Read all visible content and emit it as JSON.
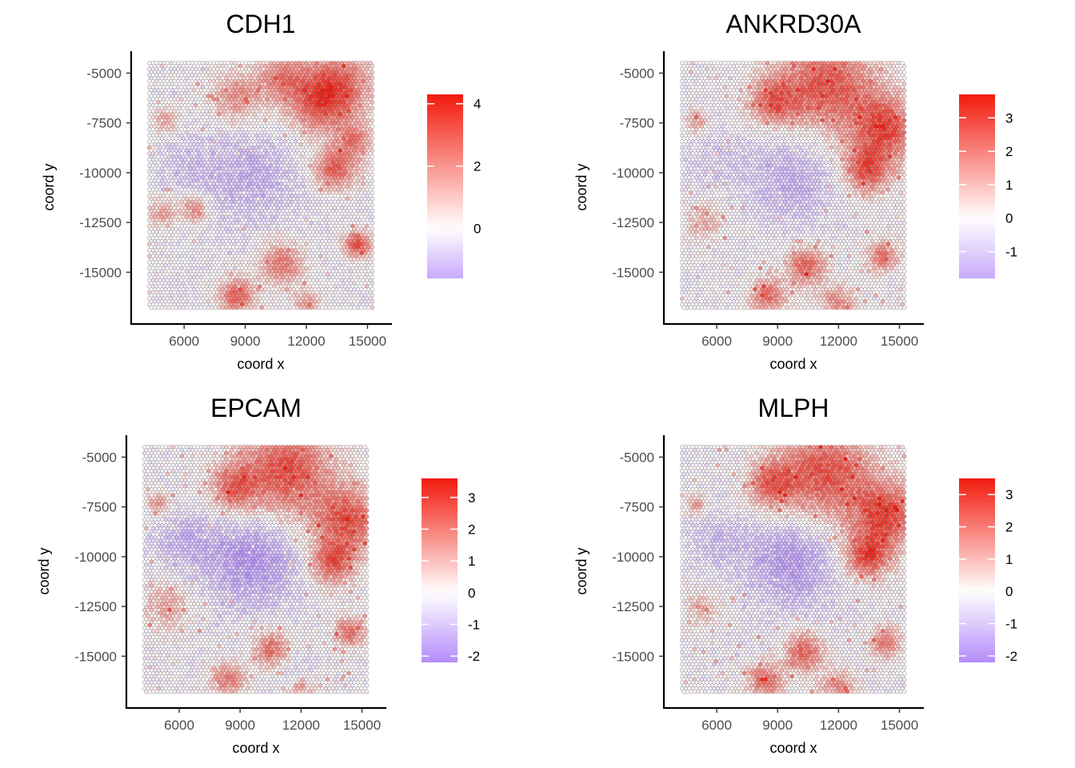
{
  "chart_data": [
    {
      "type": "scatter",
      "title": "CDH1",
      "xlabel": "coord x",
      "ylabel": "coord y",
      "x_ticks": [
        6000,
        9000,
        12000,
        15000
      ],
      "x_tick_labels": [
        "6000",
        "9000",
        "12000",
        "15000"
      ],
      "y_ticks": [
        -5000,
        -7500,
        -10000,
        -12500,
        -15000
      ],
      "y_tick_labels": [
        "-5000",
        "-7500",
        "-10000",
        "-12500",
        "-15000"
      ],
      "xlim": [
        3400,
        16200
      ],
      "ylim": [
        -17600,
        -3900
      ],
      "grid": false,
      "legend_position": "right",
      "color_scale": {
        "low": "#c8aafa",
        "mid": "#ffffff",
        "high": "#f21a0d",
        "min": -1.6,
        "max": 4.3
      },
      "color_scale_ticks": [
        0,
        2,
        4
      ],
      "color_scale_tick_labels": [
        "0",
        "2",
        "4"
      ],
      "hotspots": [
        {
          "x": 13500,
          "y": -5600,
          "r": 1800,
          "v": 3.0
        },
        {
          "x": 10800,
          "y": -5200,
          "r": 1200,
          "v": 2.3
        },
        {
          "x": 8600,
          "y": -6200,
          "r": 1300,
          "v": 2.0
        },
        {
          "x": 12500,
          "y": -6700,
          "r": 1500,
          "v": 2.2
        },
        {
          "x": 13400,
          "y": -9800,
          "r": 1100,
          "v": 3.0
        },
        {
          "x": 14400,
          "y": -8400,
          "r": 900,
          "v": 2.2
        },
        {
          "x": 10800,
          "y": -14600,
          "r": 1100,
          "v": 2.5
        },
        {
          "x": 8600,
          "y": -16200,
          "r": 900,
          "v": 3.0
        },
        {
          "x": 14500,
          "y": -13600,
          "r": 700,
          "v": 3.4
        },
        {
          "x": 6500,
          "y": -11800,
          "r": 700,
          "v": 2.2
        },
        {
          "x": 5100,
          "y": -7400,
          "r": 700,
          "v": 1.5
        },
        {
          "x": 4900,
          "y": -12000,
          "r": 800,
          "v": 1.6
        },
        {
          "x": 12000,
          "y": -16600,
          "r": 700,
          "v": 1.8
        }
      ],
      "cold_spots": [
        {
          "x": 9300,
          "y": -10300,
          "r": 2300,
          "v": -1.0
        },
        {
          "x": 6200,
          "y": -9600,
          "r": 1500,
          "v": -0.6
        }
      ]
    },
    {
      "type": "scatter",
      "title": "ANKRD30A",
      "xlabel": "coord x",
      "ylabel": "coord y",
      "x_ticks": [
        6000,
        9000,
        12000,
        15000
      ],
      "x_tick_labels": [
        "6000",
        "9000",
        "12000",
        "15000"
      ],
      "y_ticks": [
        -5000,
        -7500,
        -10000,
        -12500,
        -15000
      ],
      "y_tick_labels": [
        "-5000",
        "-7500",
        "-10000",
        "-12500",
        "-15000"
      ],
      "xlim": [
        3400,
        16200
      ],
      "ylim": [
        -17600,
        -3900
      ],
      "grid": false,
      "legend_position": "right",
      "color_scale": {
        "low": "#c8aafa",
        "mid": "#ffffff",
        "high": "#f21a0d",
        "min": -1.8,
        "max": 3.7
      },
      "color_scale_ticks": [
        -1,
        0,
        1,
        2,
        3
      ],
      "color_scale_tick_labels": [
        "-1",
        "0",
        "1",
        "2",
        "3"
      ],
      "hotspots": [
        {
          "x": 11500,
          "y": -5600,
          "r": 2400,
          "v": 2.8
        },
        {
          "x": 14300,
          "y": -7800,
          "r": 1700,
          "v": 2.9
        },
        {
          "x": 13400,
          "y": -9900,
          "r": 1200,
          "v": 2.8
        },
        {
          "x": 8800,
          "y": -6400,
          "r": 1300,
          "v": 2.3
        },
        {
          "x": 10400,
          "y": -14700,
          "r": 1000,
          "v": 2.5
        },
        {
          "x": 8500,
          "y": -16200,
          "r": 900,
          "v": 2.4
        },
        {
          "x": 14200,
          "y": -14200,
          "r": 800,
          "v": 2.2
        },
        {
          "x": 12000,
          "y": -16500,
          "r": 900,
          "v": 1.8
        },
        {
          "x": 5400,
          "y": -12500,
          "r": 1000,
          "v": 1.2
        },
        {
          "x": 5000,
          "y": -7400,
          "r": 600,
          "v": 1.5
        }
      ],
      "cold_spots": [
        {
          "x": 9700,
          "y": -10400,
          "r": 2200,
          "v": -1.2
        },
        {
          "x": 6000,
          "y": -9300,
          "r": 1500,
          "v": -0.5
        }
      ]
    },
    {
      "type": "scatter",
      "title": "EPCAM",
      "xlabel": "coord x",
      "ylabel": "coord y",
      "x_ticks": [
        6000,
        9000,
        12000,
        15000
      ],
      "x_tick_labels": [
        "6000",
        "9000",
        "12000",
        "15000"
      ],
      "y_ticks": [
        -5000,
        -7500,
        -10000,
        -12500,
        -15000
      ],
      "y_tick_labels": [
        "-5000",
        "-7500",
        "-10000",
        "-12500",
        "-15000"
      ],
      "xlim": [
        3400,
        16200
      ],
      "ylim": [
        -17600,
        -3900
      ],
      "grid": false,
      "legend_position": "right",
      "color_scale": {
        "low": "#b48cfa",
        "mid": "#ffffff",
        "high": "#f21a0d",
        "min": -2.2,
        "max": 3.6
      },
      "color_scale_ticks": [
        -2,
        -1,
        0,
        1,
        2,
        3
      ],
      "color_scale_tick_labels": [
        "-2",
        "-1",
        "0",
        "1",
        "2",
        "3"
      ],
      "hotspots": [
        {
          "x": 11200,
          "y": -5700,
          "r": 2400,
          "v": 2.8
        },
        {
          "x": 14300,
          "y": -8200,
          "r": 1700,
          "v": 2.7
        },
        {
          "x": 13500,
          "y": -10300,
          "r": 1100,
          "v": 2.6
        },
        {
          "x": 8700,
          "y": -6600,
          "r": 1200,
          "v": 2.1
        },
        {
          "x": 10600,
          "y": -14700,
          "r": 1000,
          "v": 2.2
        },
        {
          "x": 8400,
          "y": -16200,
          "r": 900,
          "v": 2.0
        },
        {
          "x": 14400,
          "y": -13800,
          "r": 800,
          "v": 2.3
        },
        {
          "x": 5400,
          "y": -12500,
          "r": 1300,
          "v": 1.2
        },
        {
          "x": 5000,
          "y": -7300,
          "r": 600,
          "v": 1.5
        },
        {
          "x": 12000,
          "y": -16600,
          "r": 800,
          "v": 1.4
        }
      ],
      "cold_spots": [
        {
          "x": 9600,
          "y": -10200,
          "r": 2300,
          "v": -1.6
        },
        {
          "x": 6300,
          "y": -9300,
          "r": 1500,
          "v": -0.9
        },
        {
          "x": 11600,
          "y": -15800,
          "r": 1000,
          "v": -0.7
        }
      ]
    },
    {
      "type": "scatter",
      "title": "MLPH",
      "xlabel": "coord x",
      "ylabel": "coord y",
      "x_ticks": [
        6000,
        9000,
        12000,
        15000
      ],
      "x_tick_labels": [
        "6000",
        "9000",
        "12000",
        "15000"
      ],
      "y_ticks": [
        -5000,
        -7500,
        -10000,
        -12500,
        -15000
      ],
      "y_tick_labels": [
        "-5000",
        "-7500",
        "-10000",
        "-12500",
        "-15000"
      ],
      "xlim": [
        3400,
        16200
      ],
      "ylim": [
        -17600,
        -3900
      ],
      "grid": false,
      "legend_position": "right",
      "color_scale": {
        "low": "#b48cfa",
        "mid": "#ffffff",
        "high": "#f21a0d",
        "min": -2.2,
        "max": 3.5
      },
      "color_scale_ticks": [
        -2,
        -1,
        0,
        1,
        2,
        3
      ],
      "color_scale_tick_labels": [
        "-2",
        "-1",
        "0",
        "1",
        "2",
        "3"
      ],
      "hotspots": [
        {
          "x": 11300,
          "y": -5800,
          "r": 2400,
          "v": 2.7
        },
        {
          "x": 14300,
          "y": -7900,
          "r": 1700,
          "v": 2.8
        },
        {
          "x": 13400,
          "y": -10000,
          "r": 1200,
          "v": 2.7
        },
        {
          "x": 8700,
          "y": -6400,
          "r": 1200,
          "v": 2.2
        },
        {
          "x": 10300,
          "y": -14800,
          "r": 1000,
          "v": 2.4
        },
        {
          "x": 8400,
          "y": -16200,
          "r": 900,
          "v": 2.3
        },
        {
          "x": 14300,
          "y": -14300,
          "r": 800,
          "v": 2.1
        },
        {
          "x": 12000,
          "y": -16600,
          "r": 900,
          "v": 1.7
        },
        {
          "x": 5300,
          "y": -12600,
          "r": 1000,
          "v": 1.0
        },
        {
          "x": 5000,
          "y": -7400,
          "r": 600,
          "v": 1.4
        }
      ],
      "cold_spots": [
        {
          "x": 9700,
          "y": -10300,
          "r": 2200,
          "v": -1.5
        },
        {
          "x": 6100,
          "y": -9200,
          "r": 1500,
          "v": -0.7
        }
      ]
    }
  ]
}
